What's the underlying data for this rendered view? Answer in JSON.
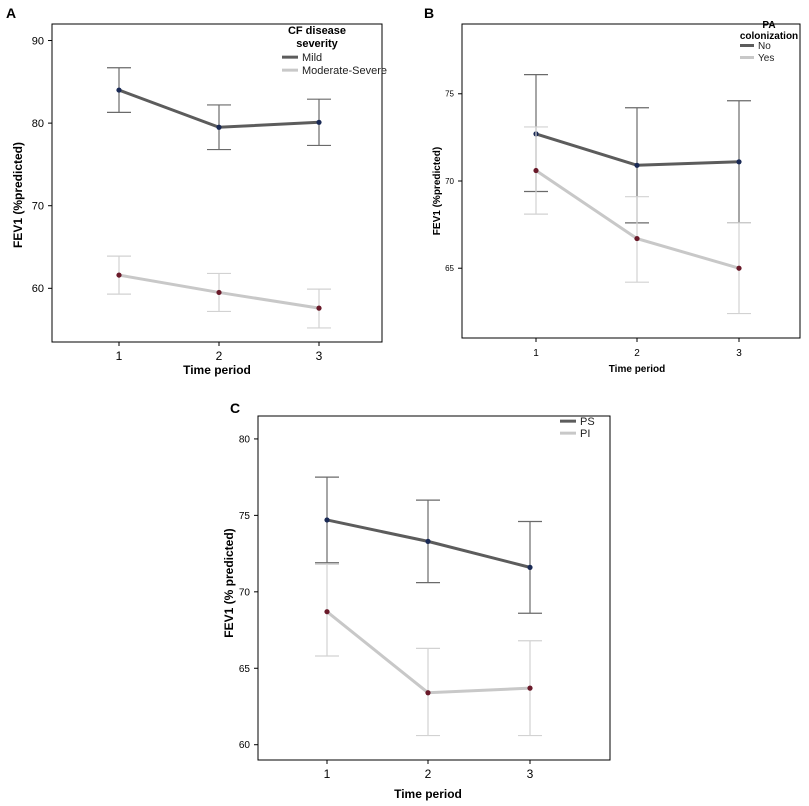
{
  "colors": {
    "dark": "#5c5c5c",
    "light": "#c8c8c8",
    "dot_dark": "#1a2a55",
    "dot_light": "#6a1a2a"
  },
  "chart_data": [
    {
      "panel": "A",
      "type": "line",
      "xlabel": "Time period",
      "ylabel": "FEV1 (%predicted)",
      "categories": [
        "1",
        "2",
        "3"
      ],
      "ylim": [
        53.5,
        92
      ],
      "yticks": [
        "60",
        "70",
        "80",
        "90"
      ],
      "legend_title": "CF disease severity",
      "legend_placement": "top-right",
      "series": [
        {
          "name": "Mild",
          "values": [
            84,
            79.5,
            80.1
          ],
          "lower": [
            81.3,
            76.8,
            77.3
          ],
          "upper": [
            86.7,
            82.2,
            82.9
          ],
          "style": "dark"
        },
        {
          "name": "Moderate-Severe",
          "values": [
            61.6,
            59.5,
            57.6
          ],
          "lower": [
            59.3,
            57.2,
            55.2
          ],
          "upper": [
            63.9,
            61.8,
            59.9
          ],
          "style": "light"
        }
      ]
    },
    {
      "panel": "B",
      "type": "line",
      "xlabel": "Time period",
      "ylabel": "FEV1 (%predicted)",
      "categories": [
        "1",
        "2",
        "3"
      ],
      "ylim": [
        61,
        79
      ],
      "yticks": [
        "65",
        "70",
        "75"
      ],
      "legend_title": "PA colonization",
      "legend_placement": "top-right",
      "series": [
        {
          "name": "No",
          "values": [
            72.7,
            70.9,
            71.1
          ],
          "lower": [
            69.4,
            67.6,
            67.6
          ],
          "upper": [
            76.1,
            74.2,
            74.6
          ],
          "style": "dark"
        },
        {
          "name": "Yes",
          "values": [
            70.6,
            66.7,
            65
          ],
          "lower": [
            68.1,
            64.2,
            62.4
          ],
          "upper": [
            73.1,
            69.1,
            67.6
          ],
          "style": "light"
        }
      ]
    },
    {
      "panel": "C",
      "type": "line",
      "xlabel": "Time period",
      "ylabel": "FEV1 (% predicted)",
      "categories": [
        "1",
        "2",
        "3"
      ],
      "ylim": [
        59,
        81.5
      ],
      "yticks": [
        "60",
        "65",
        "70",
        "75",
        "80"
      ],
      "legend_title": "",
      "legend_placement": "top-right",
      "series": [
        {
          "name": "PS",
          "values": [
            74.7,
            73.3,
            71.6
          ],
          "lower": [
            71.9,
            70.6,
            68.6
          ],
          "upper": [
            77.5,
            76.0,
            74.6
          ],
          "style": "dark"
        },
        {
          "name": "PI",
          "values": [
            68.7,
            63.4,
            63.7
          ],
          "lower": [
            65.8,
            60.6,
            60.6
          ],
          "upper": [
            71.8,
            66.3,
            66.8
          ],
          "style": "light"
        }
      ]
    }
  ]
}
